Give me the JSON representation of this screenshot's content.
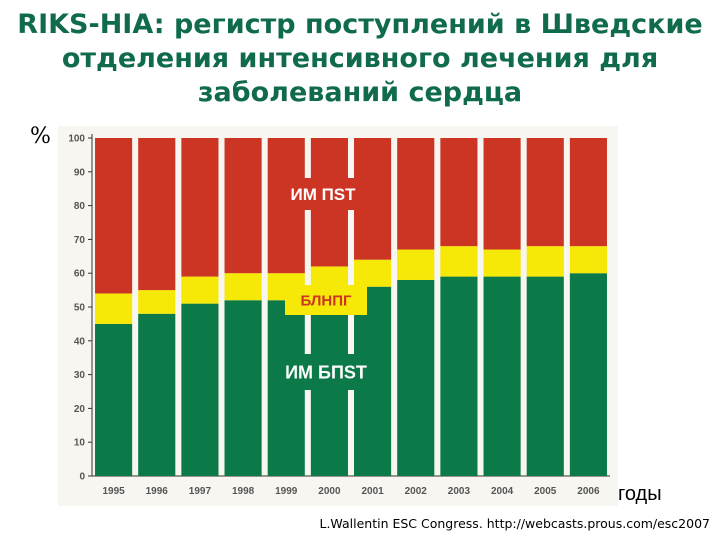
{
  "title_lines": [
    "RIKS-HIA: регистр поступлений в Шведские",
    "отделения интенсивного лечения для",
    "заболеваний сердца"
  ],
  "y_unit": "%",
  "x_unit": "годы",
  "source": "L.Wallentin ESC Congress. http://webcasts.prous.com/esc2007",
  "chart_data": {
    "type": "bar",
    "stacked": true,
    "categories": [
      "1995",
      "1996",
      "1997",
      "1998",
      "1999",
      "2000",
      "2001",
      "2002",
      "2003",
      "2004",
      "2005",
      "2006"
    ],
    "series": [
      {
        "name": "ИМ БПST",
        "color": "#0b7a48",
        "values": [
          45,
          48,
          51,
          52,
          52,
          52,
          56,
          58,
          59,
          59,
          59,
          60
        ]
      },
      {
        "name": "БЛНПГ",
        "color": "#f6e807",
        "values": [
          9,
          7,
          8,
          8,
          8,
          10,
          8,
          9,
          9,
          8,
          9,
          8
        ]
      },
      {
        "name": "ИМ ПST",
        "color": "#cc3524",
        "values": [
          46,
          45,
          41,
          40,
          40,
          38,
          36,
          33,
          32,
          33,
          32,
          32
        ]
      }
    ],
    "yticks": [
      0,
      10,
      20,
      30,
      40,
      50,
      60,
      70,
      80,
      90,
      100
    ],
    "ylim": [
      0,
      100
    ],
    "grid": false
  }
}
